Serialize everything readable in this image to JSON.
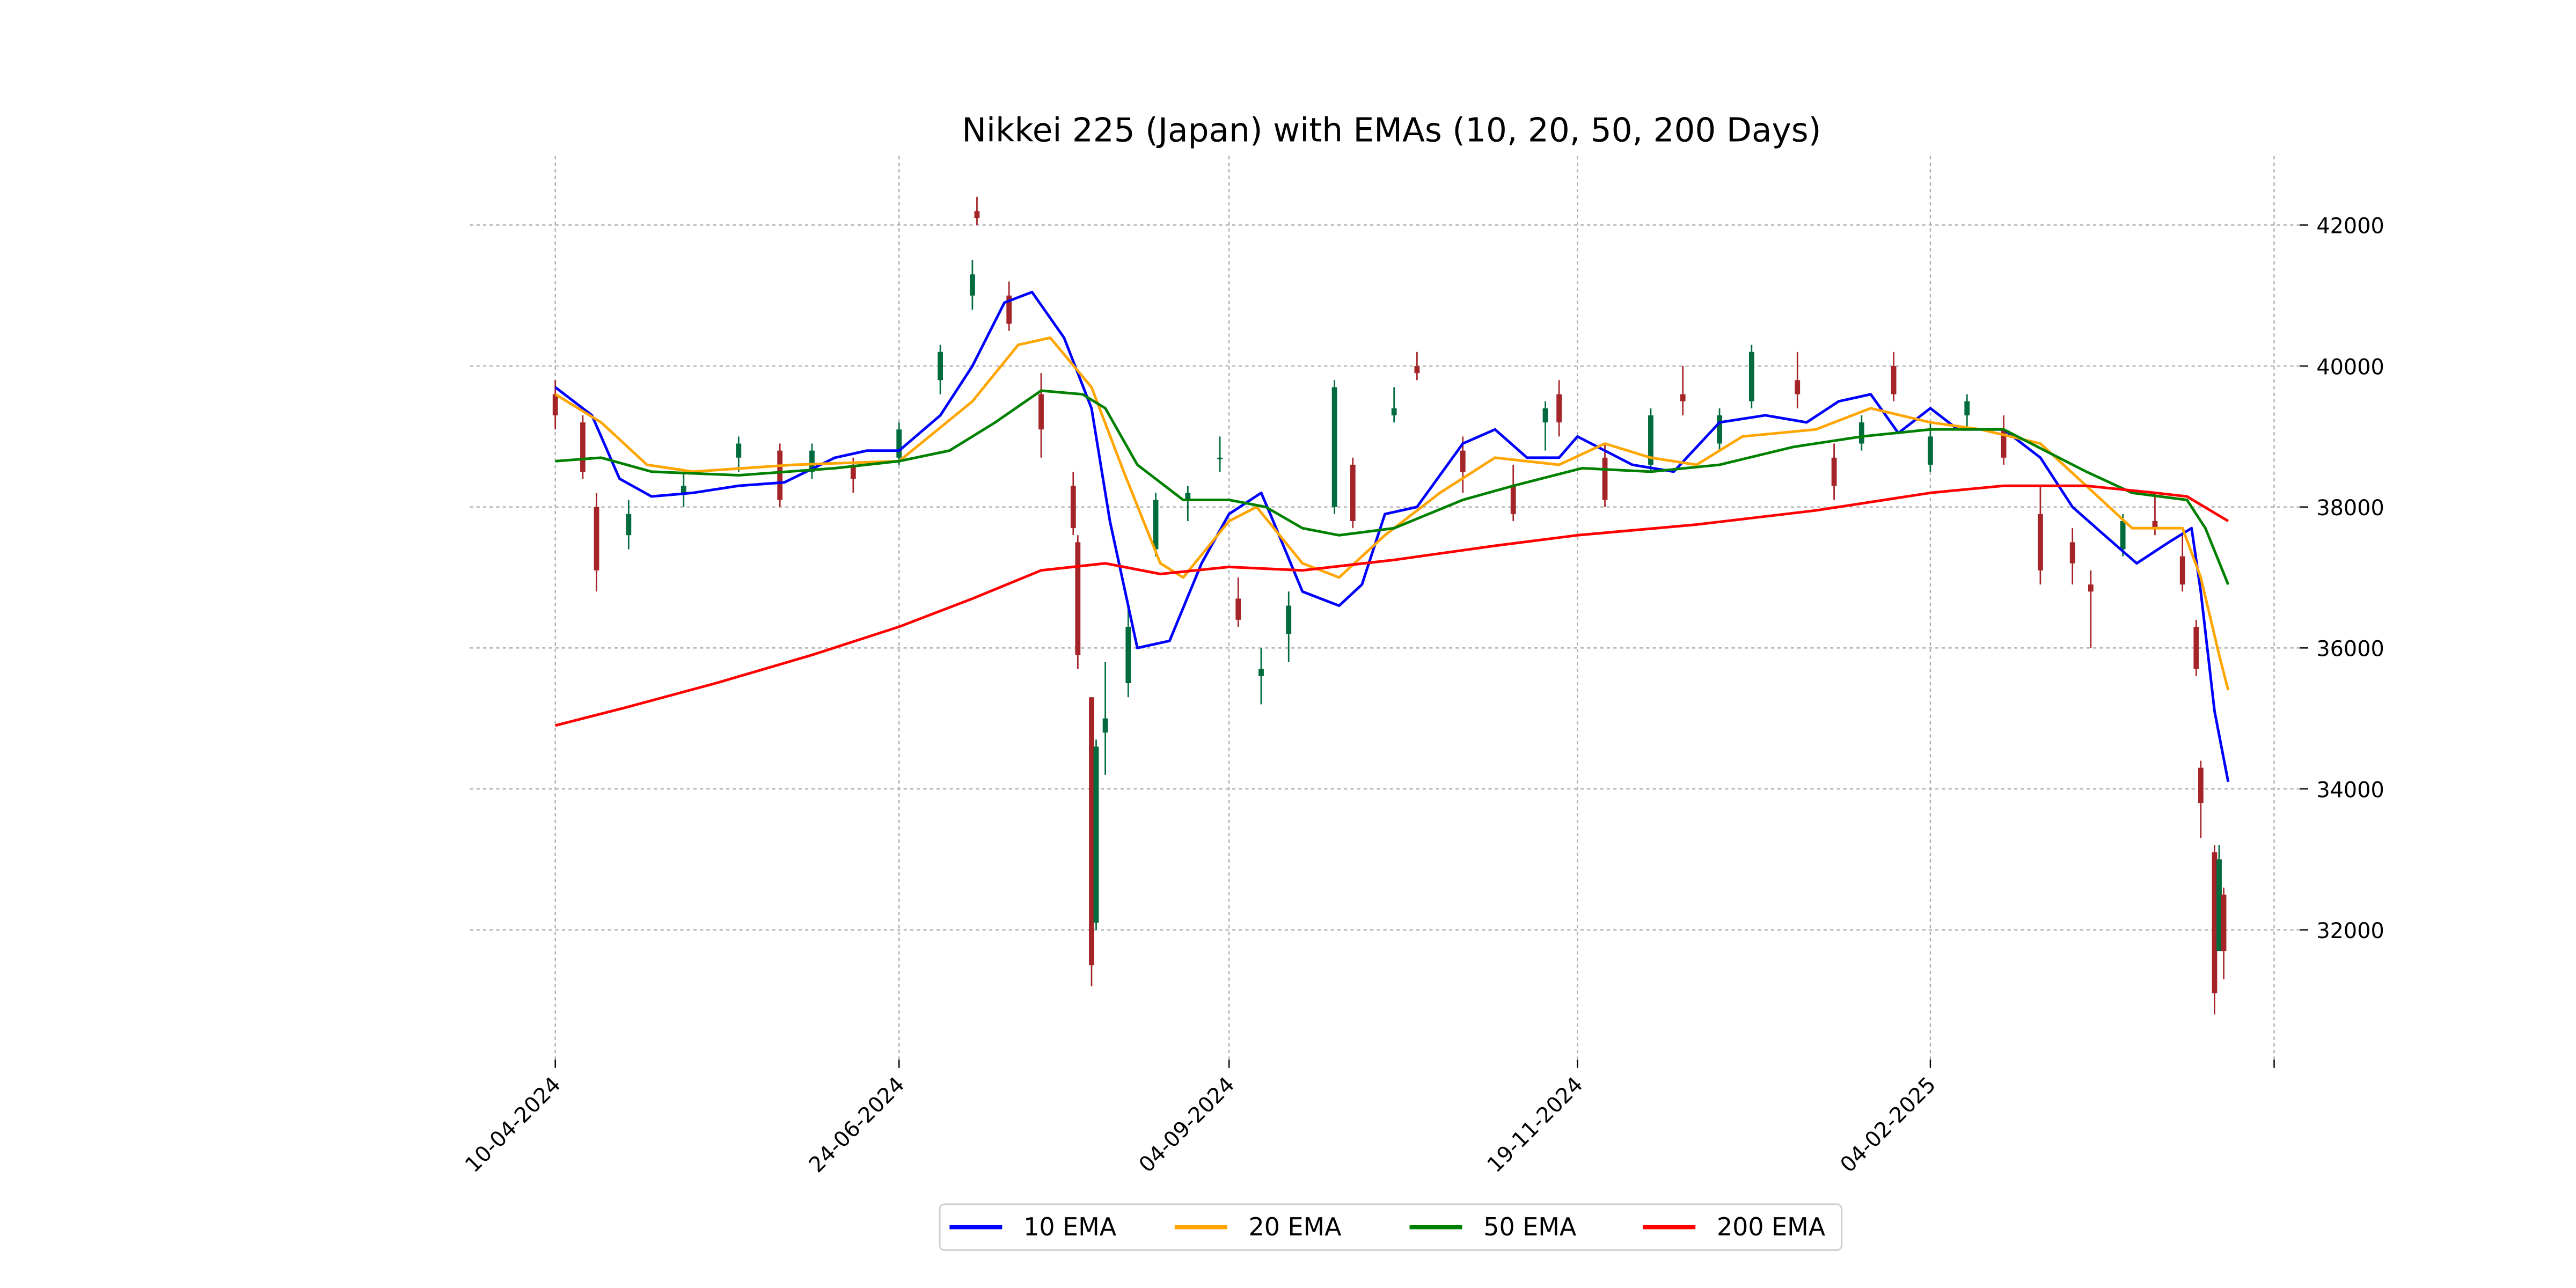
{
  "chart_data": {
    "type": "candlestick+line",
    "title": "Nikkei 225 (Japan) with EMAs (10, 20, 50, 200 Days)",
    "xlabel": "",
    "ylabel": "",
    "ylim": [
      30400,
      42900
    ],
    "grid": true,
    "y_axis_side": "right",
    "y_ticks": [
      32000,
      34000,
      36000,
      38000,
      40000,
      42000
    ],
    "x_ticks": [
      {
        "date": "2024-04-10",
        "label": "10-04-2024"
      },
      {
        "date": "2024-06-24",
        "label": "24-06-2024"
      },
      {
        "date": "2024-09-04",
        "label": "04-09-2024"
      },
      {
        "date": "2024-11-19",
        "label": "19-11-2024"
      },
      {
        "date": "2025-02-04",
        "label": "04-02-2025"
      },
      {
        "date": "2025-04-20",
        "label": ""
      }
    ],
    "legend_position": "bottom-center",
    "colors": {
      "up": "#006b3c",
      "down": "#a52428",
      "ema10": "#0000ff",
      "ema20": "#ffa500",
      "ema50": "#008000",
      "ema200": "#ff0000"
    },
    "candles_ohlc": [
      [
        "2024-04-10",
        39600,
        39800,
        39100,
        39300
      ],
      [
        "2024-04-16",
        39200,
        39300,
        38400,
        38500
      ],
      [
        "2024-04-19",
        38000,
        38200,
        36800,
        37100
      ],
      [
        "2024-04-26",
        37600,
        38100,
        37400,
        37900
      ],
      [
        "2024-05-08",
        38200,
        38500,
        38000,
        38300
      ],
      [
        "2024-05-20",
        38700,
        39000,
        38500,
        38900
      ],
      [
        "2024-05-29",
        38800,
        38900,
        38000,
        38100
      ],
      [
        "2024-06-05",
        38500,
        38900,
        38400,
        38800
      ],
      [
        "2024-06-14",
        38600,
        38700,
        38200,
        38400
      ],
      [
        "2024-06-24",
        38700,
        39200,
        38600,
        39100
      ],
      [
        "2024-07-03",
        39800,
        40300,
        39600,
        40200
      ],
      [
        "2024-07-10",
        41000,
        41500,
        40800,
        41300
      ],
      [
        "2024-07-11",
        42200,
        42400,
        42000,
        42100
      ],
      [
        "2024-07-18",
        41000,
        41200,
        40500,
        40600
      ],
      [
        "2024-07-25",
        39600,
        39900,
        38700,
        39100
      ],
      [
        "2024-08-01",
        38300,
        38500,
        37600,
        37700
      ],
      [
        "2024-08-02",
        37500,
        37600,
        35700,
        35900
      ],
      [
        "2024-08-05",
        35300,
        35300,
        31200,
        31500
      ],
      [
        "2024-08-06",
        32100,
        34700,
        32000,
        34600
      ],
      [
        "2024-08-08",
        34800,
        35800,
        34200,
        35000
      ],
      [
        "2024-08-13",
        35500,
        36600,
        35300,
        36300
      ],
      [
        "2024-08-19",
        37400,
        38200,
        37300,
        38100
      ],
      [
        "2024-08-26",
        38100,
        38300,
        37800,
        38200
      ],
      [
        "2024-09-02",
        38700,
        39000,
        38500,
        38700
      ],
      [
        "2024-09-06",
        36700,
        37000,
        36300,
        36400
      ],
      [
        "2024-09-11",
        35600,
        36000,
        35200,
        35700
      ],
      [
        "2024-09-17",
        36200,
        36800,
        35800,
        36600
      ],
      [
        "2024-09-27",
        38000,
        39800,
        37900,
        39700
      ],
      [
        "2024-10-01",
        38600,
        38700,
        37700,
        37800
      ],
      [
        "2024-10-10",
        39300,
        39700,
        39200,
        39400
      ],
      [
        "2024-10-15",
        40000,
        40200,
        39800,
        39900
      ],
      [
        "2024-10-25",
        38800,
        39000,
        38200,
        38500
      ],
      [
        "2024-11-05",
        38300,
        38600,
        37800,
        37900
      ],
      [
        "2024-11-12",
        39200,
        39500,
        38800,
        39400
      ],
      [
        "2024-11-15",
        39600,
        39800,
        39000,
        39200
      ],
      [
        "2024-11-25",
        38700,
        38900,
        38000,
        38100
      ],
      [
        "2024-12-05",
        38600,
        39400,
        38500,
        39300
      ],
      [
        "2024-12-12",
        39600,
        40000,
        39300,
        39500
      ],
      [
        "2024-12-20",
        38900,
        39400,
        38800,
        39300
      ],
      [
        "2024-12-27",
        39500,
        40300,
        39400,
        40200
      ],
      [
        "2025-01-06",
        39800,
        40200,
        39400,
        39600
      ],
      [
        "2025-01-14",
        38700,
        38900,
        38100,
        38300
      ],
      [
        "2025-01-20",
        38900,
        39300,
        38800,
        39200
      ],
      [
        "2025-01-27",
        40000,
        40200,
        39500,
        39600
      ],
      [
        "2025-02-04",
        38600,
        39200,
        38500,
        39000
      ],
      [
        "2025-02-12",
        39300,
        39600,
        39100,
        39500
      ],
      [
        "2025-02-20",
        39100,
        39300,
        38600,
        38700
      ],
      [
        "2025-02-28",
        37900,
        38300,
        36900,
        37100
      ],
      [
        "2025-03-07",
        37500,
        37700,
        36900,
        37200
      ],
      [
        "2025-03-11",
        36900,
        37100,
        36000,
        36800
      ],
      [
        "2025-03-18",
        37400,
        37900,
        37300,
        37800
      ],
      [
        "2025-03-25",
        37800,
        38200,
        37600,
        37700
      ],
      [
        "2025-03-31",
        37300,
        37600,
        36800,
        36900
      ],
      [
        "2025-04-03",
        36300,
        36400,
        35600,
        35700
      ],
      [
        "2025-04-04",
        34300,
        34400,
        33300,
        33800
      ],
      [
        "2025-04-07",
        33100,
        33200,
        30800,
        31100
      ],
      [
        "2025-04-08",
        31700,
        33200,
        31700,
        33000
      ],
      [
        "2025-04-09",
        32500,
        32600,
        31300,
        31700
      ]
    ],
    "series": [
      {
        "name": "10 EMA",
        "color": "#0000ff",
        "points": [
          [
            "2024-04-10",
            39700
          ],
          [
            "2024-04-18",
            39300
          ],
          [
            "2024-04-24",
            38400
          ],
          [
            "2024-05-01",
            38150
          ],
          [
            "2024-05-10",
            38200
          ],
          [
            "2024-05-20",
            38300
          ],
          [
            "2024-05-30",
            38350
          ],
          [
            "2024-06-10",
            38700
          ],
          [
            "2024-06-17",
            38800
          ],
          [
            "2024-06-24",
            38800
          ],
          [
            "2024-07-03",
            39300
          ],
          [
            "2024-07-10",
            40000
          ],
          [
            "2024-07-17",
            40900
          ],
          [
            "2024-07-23",
            41050
          ],
          [
            "2024-07-30",
            40400
          ],
          [
            "2024-08-05",
            39400
          ],
          [
            "2024-08-09",
            37800
          ],
          [
            "2024-08-15",
            36000
          ],
          [
            "2024-08-22",
            36100
          ],
          [
            "2024-08-29",
            37200
          ],
          [
            "2024-09-04",
            37900
          ],
          [
            "2024-09-11",
            38200
          ],
          [
            "2024-09-13",
            37900
          ],
          [
            "2024-09-20",
            36800
          ],
          [
            "2024-09-28",
            36600
          ],
          [
            "2024-10-03",
            36900
          ],
          [
            "2024-10-08",
            37900
          ],
          [
            "2024-10-15",
            38000
          ],
          [
            "2024-10-25",
            38900
          ],
          [
            "2024-11-01",
            39100
          ],
          [
            "2024-11-08",
            38700
          ],
          [
            "2024-11-15",
            38700
          ],
          [
            "2024-11-19",
            39000
          ],
          [
            "2024-12-01",
            38600
          ],
          [
            "2024-12-10",
            38500
          ],
          [
            "2024-12-20",
            39200
          ],
          [
            "2024-12-30",
            39300
          ],
          [
            "2025-01-08",
            39200
          ],
          [
            "2025-01-15",
            39500
          ],
          [
            "2025-01-22",
            39600
          ],
          [
            "2025-01-28",
            39050
          ],
          [
            "2025-02-04",
            39400
          ],
          [
            "2025-02-10",
            39100
          ],
          [
            "2025-02-20",
            39100
          ],
          [
            "2025-02-28",
            38700
          ],
          [
            "2025-03-07",
            38000
          ],
          [
            "2025-03-14",
            37600
          ],
          [
            "2025-03-21",
            37200
          ],
          [
            "2025-03-28",
            37500
          ],
          [
            "2025-04-02",
            37700
          ],
          [
            "2025-04-04",
            36800
          ],
          [
            "2025-04-07",
            35100
          ],
          [
            "2025-04-10",
            34100
          ]
        ]
      },
      {
        "name": "20 EMA",
        "color": "#ffa500",
        "points": [
          [
            "2024-04-10",
            39600
          ],
          [
            "2024-04-20",
            39200
          ],
          [
            "2024-04-30",
            38600
          ],
          [
            "2024-05-10",
            38500
          ],
          [
            "2024-06-01",
            38600
          ],
          [
            "2024-06-24",
            38650
          ],
          [
            "2024-07-10",
            39500
          ],
          [
            "2024-07-20",
            40300
          ],
          [
            "2024-07-27",
            40400
          ],
          [
            "2024-08-05",
            39700
          ],
          [
            "2024-08-12",
            38500
          ],
          [
            "2024-08-20",
            37200
          ],
          [
            "2024-08-25",
            37000
          ],
          [
            "2024-09-04",
            37800
          ],
          [
            "2024-09-10",
            38000
          ],
          [
            "2024-09-20",
            37200
          ],
          [
            "2024-09-28",
            37000
          ],
          [
            "2024-10-08",
            37600
          ],
          [
            "2024-10-20",
            38200
          ],
          [
            "2024-11-01",
            38700
          ],
          [
            "2024-11-15",
            38600
          ],
          [
            "2024-11-25",
            38900
          ],
          [
            "2024-12-05",
            38700
          ],
          [
            "2024-12-15",
            38600
          ],
          [
            "2024-12-25",
            39000
          ],
          [
            "2025-01-10",
            39100
          ],
          [
            "2025-01-22",
            39400
          ],
          [
            "2025-02-04",
            39200
          ],
          [
            "2025-02-15",
            39100
          ],
          [
            "2025-02-28",
            38900
          ],
          [
            "2025-03-10",
            38300
          ],
          [
            "2025-03-20",
            37700
          ],
          [
            "2025-03-31",
            37700
          ],
          [
            "2025-04-04",
            37000
          ],
          [
            "2025-04-08",
            35900
          ],
          [
            "2025-04-10",
            35400
          ]
        ]
      },
      {
        "name": "50 EMA",
        "color": "#008000",
        "points": [
          [
            "2024-04-10",
            38650
          ],
          [
            "2024-04-20",
            38700
          ],
          [
            "2024-05-01",
            38500
          ],
          [
            "2024-05-20",
            38450
          ],
          [
            "2024-06-10",
            38550
          ],
          [
            "2024-06-24",
            38650
          ],
          [
            "2024-07-05",
            38800
          ],
          [
            "2024-07-15",
            39200
          ],
          [
            "2024-07-25",
            39650
          ],
          [
            "2024-08-03",
            39600
          ],
          [
            "2024-08-08",
            39400
          ],
          [
            "2024-08-15",
            38600
          ],
          [
            "2024-08-25",
            38100
          ],
          [
            "2024-09-04",
            38100
          ],
          [
            "2024-09-12",
            38000
          ],
          [
            "2024-09-20",
            37700
          ],
          [
            "2024-09-28",
            37600
          ],
          [
            "2024-10-10",
            37700
          ],
          [
            "2024-10-25",
            38100
          ],
          [
            "2024-11-05",
            38300
          ],
          [
            "2024-11-20",
            38550
          ],
          [
            "2024-12-05",
            38500
          ],
          [
            "2024-12-20",
            38600
          ],
          [
            "2025-01-05",
            38850
          ],
          [
            "2025-01-20",
            39000
          ],
          [
            "2025-02-04",
            39100
          ],
          [
            "2025-02-20",
            39100
          ],
          [
            "2025-03-01",
            38800
          ],
          [
            "2025-03-10",
            38500
          ],
          [
            "2025-03-20",
            38200
          ],
          [
            "2025-04-01",
            38100
          ],
          [
            "2025-04-05",
            37700
          ],
          [
            "2025-04-10",
            36900
          ]
        ]
      },
      {
        "name": "200 EMA",
        "color": "#ff0000",
        "points": [
          [
            "2024-04-10",
            34900
          ],
          [
            "2024-04-25",
            35150
          ],
          [
            "2024-05-15",
            35500
          ],
          [
            "2024-06-05",
            35900
          ],
          [
            "2024-06-24",
            36300
          ],
          [
            "2024-07-10",
            36700
          ],
          [
            "2024-07-25",
            37100
          ],
          [
            "2024-08-08",
            37200
          ],
          [
            "2024-08-20",
            37050
          ],
          [
            "2024-09-04",
            37150
          ],
          [
            "2024-09-20",
            37100
          ],
          [
            "2024-10-10",
            37250
          ],
          [
            "2024-11-01",
            37450
          ],
          [
            "2024-11-19",
            37600
          ],
          [
            "2024-12-15",
            37750
          ],
          [
            "2025-01-10",
            37950
          ],
          [
            "2025-01-25",
            38100
          ],
          [
            "2025-02-04",
            38200
          ],
          [
            "2025-02-20",
            38300
          ],
          [
            "2025-03-10",
            38300
          ],
          [
            "2025-03-25",
            38200
          ],
          [
            "2025-04-01",
            38150
          ],
          [
            "2025-04-10",
            37800
          ]
        ]
      }
    ]
  }
}
